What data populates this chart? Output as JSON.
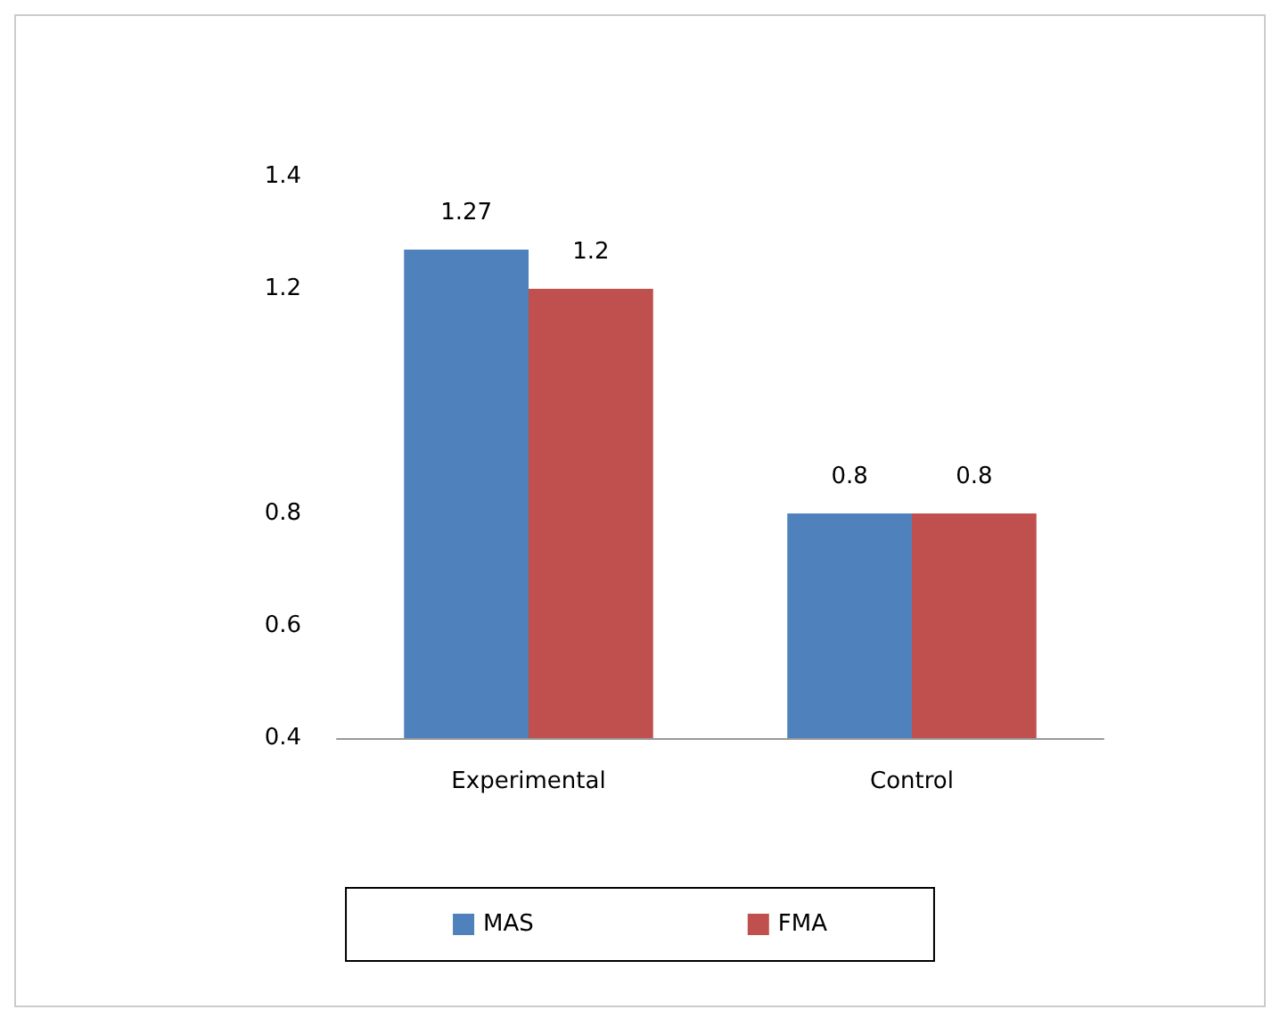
{
  "chart_data": {
    "type": "bar",
    "categories": [
      "Experimental",
      "Control"
    ],
    "series": [
      {
        "name": "MAS",
        "color": "#4f81bd",
        "values": [
          1.27,
          0.8
        ]
      },
      {
        "name": "FMA",
        "color": "#c0504d",
        "values": [
          1.2,
          0.8
        ]
      }
    ],
    "ylim": [
      0.4,
      1.4
    ],
    "yticks": [
      0.4,
      0.6,
      0.8,
      1.2,
      1.4
    ],
    "data_labels": true,
    "grid": false,
    "legend": "bottom"
  }
}
